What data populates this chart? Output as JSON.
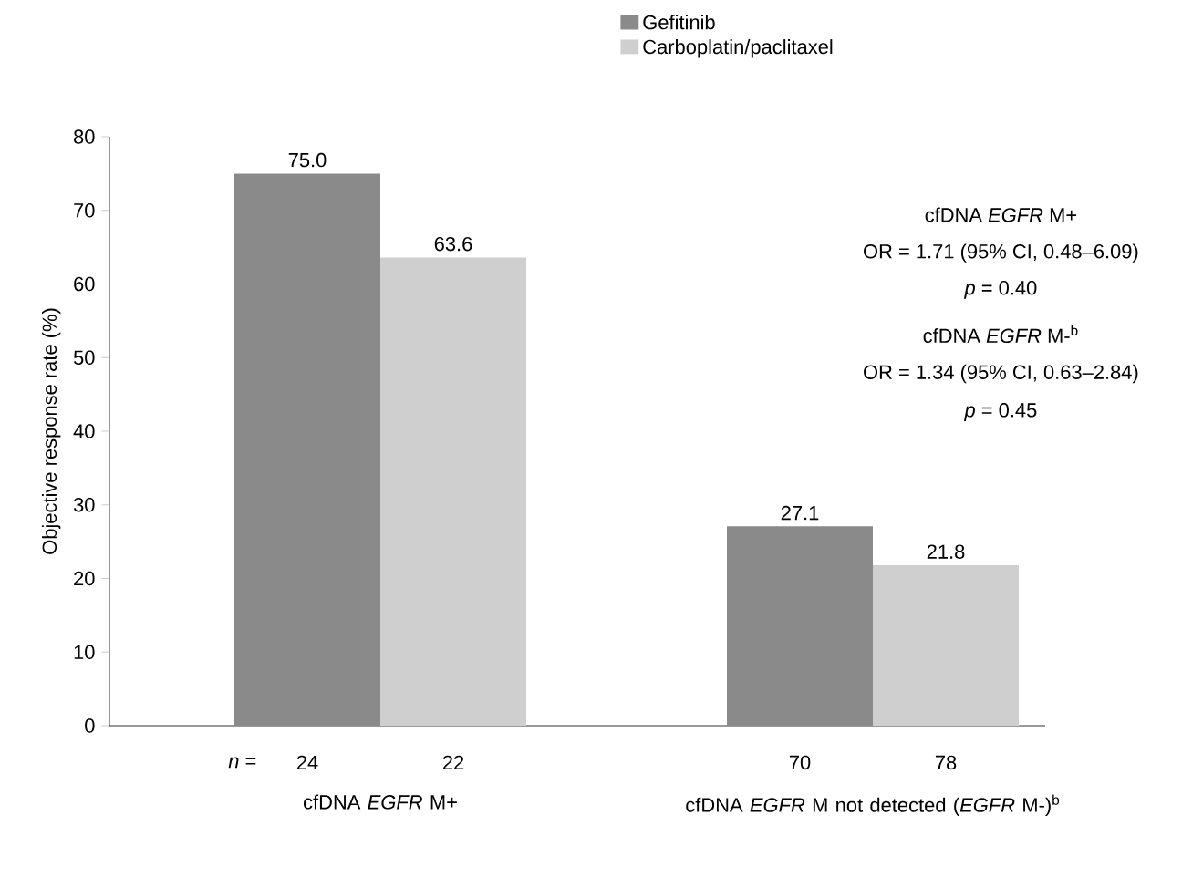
{
  "chart_data": {
    "type": "bar",
    "ylabel": "Objective response rate (%)",
    "categories": [
      "cfDNA *EGFR* M+",
      "cfDNA *EGFR* M not detected (*EGFR* M-)$^{b}$"
    ],
    "series": [
      {
        "name": "Gefitinib",
        "color": "#8a8a8a",
        "values": [
          75.0,
          27.1
        ],
        "value_labels": [
          "75.0",
          "27.1"
        ]
      },
      {
        "name": "Carboplatin/paclitaxel",
        "color": "#cfcfcf",
        "values": [
          63.6,
          21.8
        ],
        "value_labels": [
          "63.6",
          "21.8"
        ]
      }
    ],
    "ylim": [
      0,
      80
    ],
    "yticks": [
      0,
      10,
      20,
      30,
      40,
      50,
      60,
      70,
      80
    ],
    "legend": "top right",
    "annotations": [
      "*n* =",
      "24",
      "22",
      "70",
      "78",
      "cfDNA *EGFR* M+",
      "OR = 1.71 (95% CI, 0.48–6.09)",
      "*p* = 0.40",
      "cfDNA *EGFR* M-$^{b}$",
      "OR = 1.34 (95% CI, 0.63–2.84)",
      "*p* = 0.45"
    ]
  }
}
